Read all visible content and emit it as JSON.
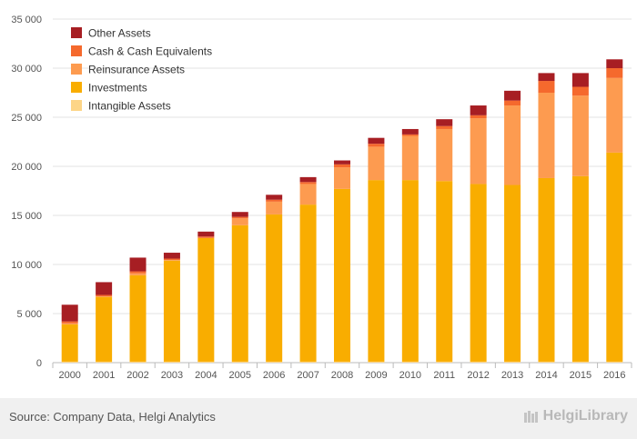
{
  "chart_data": {
    "type": "bar",
    "stacked": true,
    "categories": [
      "2000",
      "2001",
      "2002",
      "2003",
      "2004",
      "2005",
      "2006",
      "2007",
      "2008",
      "2009",
      "2010",
      "2011",
      "2012",
      "2013",
      "2014",
      "2015",
      "2016"
    ],
    "series": [
      {
        "name": "Intangible Assets",
        "color": "#fdd587",
        "values": [
          100,
          100,
          100,
          100,
          100,
          100,
          100,
          100,
          100,
          100,
          100,
          100,
          100,
          100,
          100,
          100,
          100
        ]
      },
      {
        "name": "Investments",
        "color": "#f9ad00",
        "values": [
          3800,
          6600,
          8800,
          10300,
          12600,
          13900,
          15000,
          16000,
          17600,
          18500,
          18500,
          18400,
          18100,
          18000,
          18700,
          18900,
          21300
        ]
      },
      {
        "name": "Reinsurance Assets",
        "color": "#fd9b50",
        "values": [
          100,
          50,
          200,
          50,
          0,
          700,
          1300,
          2100,
          2200,
          3400,
          4500,
          5300,
          6700,
          8100,
          8700,
          8200,
          7600
        ]
      },
      {
        "name": "Cash & Cash Equivalents",
        "color": "#f5692d",
        "values": [
          200,
          150,
          200,
          150,
          150,
          150,
          200,
          200,
          300,
          300,
          150,
          300,
          300,
          500,
          1200,
          900,
          1000
        ]
      },
      {
        "name": "Other Assets",
        "color": "#a71e23",
        "values": [
          1700,
          1300,
          1400,
          600,
          500,
          500,
          500,
          500,
          400,
          600,
          550,
          700,
          1000,
          1000,
          800,
          1400,
          900
        ]
      }
    ],
    "legend_order": [
      "Other Assets",
      "Cash & Cash Equivalents",
      "Reinsurance Assets",
      "Investments",
      "Intangible Assets"
    ],
    "y_ticks": [
      "0",
      "5 000",
      "10 000",
      "15 000",
      "20 000",
      "25 000",
      "30 000",
      "35 000"
    ],
    "ylim": [
      0,
      35000
    ],
    "grid": true,
    "legend_position": "top-left"
  },
  "footer": {
    "source": "Source: Company Data, Helgi Analytics",
    "brand": "HelgiLibrary"
  }
}
